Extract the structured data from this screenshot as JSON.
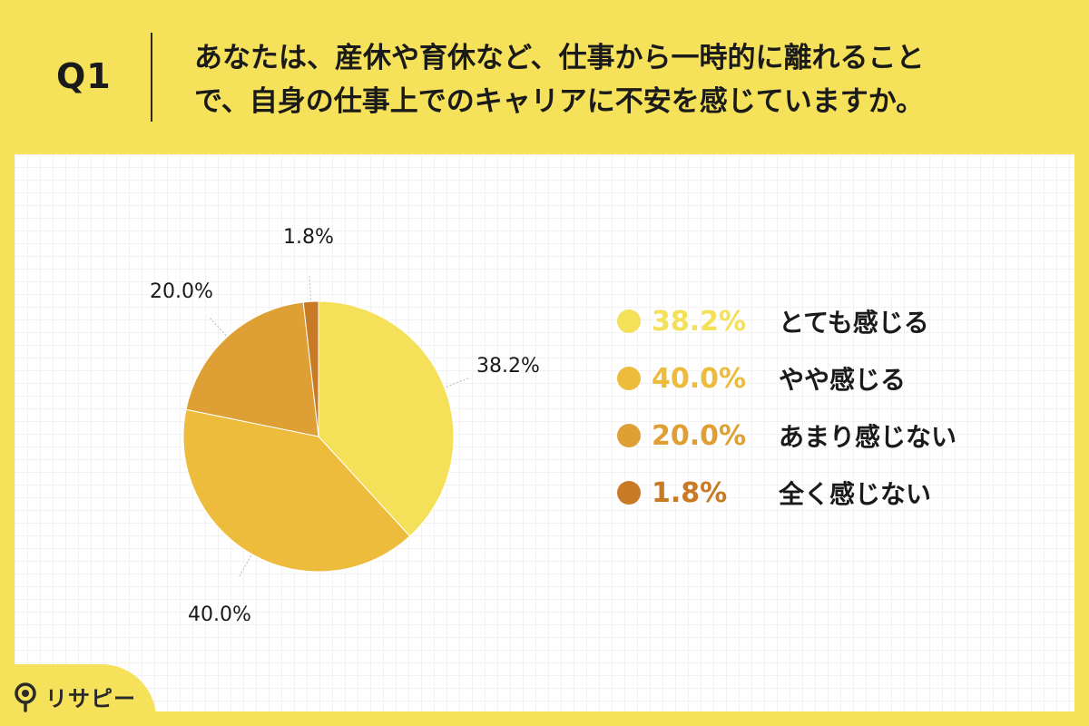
{
  "question": {
    "label": "Q1",
    "line1": "あなたは、産休や育休など、仕事から一時的に離れること",
    "line2": "で、自身の仕事上でのキャリアに不安を感じていますか。"
  },
  "chart_data": {
    "type": "pie",
    "slices": [
      {
        "label": "とても感じる",
        "value": 38.2,
        "display": "38.2%",
        "color": "#f5e05a"
      },
      {
        "label": "やや感じる",
        "value": 40.0,
        "display": "40.0%",
        "color": "#edbc3c"
      },
      {
        "label": "あまり感じない",
        "value": 20.0,
        "display": "20.0%",
        "color": "#dea035"
      },
      {
        "label": "全く感じない",
        "value": 1.8,
        "display": "1.8%",
        "color": "#c97a24"
      }
    ],
    "start": "12 o'clock",
    "direction": "clockwise",
    "legend_position": "right"
  },
  "logo": {
    "text": "リサピー"
  }
}
